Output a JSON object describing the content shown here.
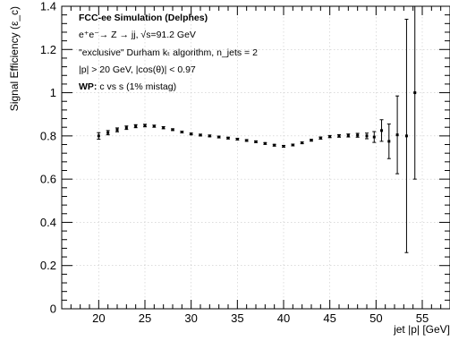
{
  "chart_data": {
    "type": "scatter",
    "xlabel": "jet |p| [GeV]",
    "ylabel": "Signal Efficiency (ε_c)",
    "xlim": [
      16,
      58
    ],
    "ylim": [
      0,
      1.4
    ],
    "xticks": [
      20,
      25,
      30,
      35,
      40,
      45,
      50,
      55
    ],
    "yticks": [
      0,
      0.2,
      0.4,
      0.6,
      0.8,
      1,
      1.2,
      1.4
    ],
    "grid": true,
    "annotations": [
      {
        "text": "FCC-ee Simulation (Delphes)",
        "bold": true
      },
      {
        "text": "e⁺e⁻→ Z → jj, √s=91.2 GeV",
        "bold": false
      },
      {
        "text": "\"exclusive\" Durham kₜ algorithm, n_jets = 2",
        "bold": false
      },
      {
        "text": "|p| > 20 GeV, |cos(θ)| < 0.97",
        "bold": false
      },
      {
        "bold_prefix": "WP: ",
        "text": "c vs s (1% mistag)",
        "bold": true
      }
    ],
    "points": [
      {
        "x": 20.0,
        "y": 0.8,
        "err": 0.015
      },
      {
        "x": 21.0,
        "y": 0.815,
        "err": 0.01
      },
      {
        "x": 22.0,
        "y": 0.828,
        "err": 0.009
      },
      {
        "x": 23.0,
        "y": 0.838,
        "err": 0.008
      },
      {
        "x": 24.0,
        "y": 0.845,
        "err": 0.007
      },
      {
        "x": 25.0,
        "y": 0.848,
        "err": 0.006
      },
      {
        "x": 26.0,
        "y": 0.845,
        "err": 0.005
      },
      {
        "x": 27.0,
        "y": 0.838,
        "err": 0.005
      },
      {
        "x": 28.0,
        "y": 0.829,
        "err": 0.004
      },
      {
        "x": 29.0,
        "y": 0.818,
        "err": 0.004
      },
      {
        "x": 30.0,
        "y": 0.809,
        "err": 0.004
      },
      {
        "x": 31.0,
        "y": 0.804,
        "err": 0.004
      },
      {
        "x": 32.0,
        "y": 0.8,
        "err": 0.004
      },
      {
        "x": 33.0,
        "y": 0.795,
        "err": 0.004
      },
      {
        "x": 34.0,
        "y": 0.79,
        "err": 0.004
      },
      {
        "x": 35.0,
        "y": 0.785,
        "err": 0.004
      },
      {
        "x": 36.0,
        "y": 0.779,
        "err": 0.004
      },
      {
        "x": 37.0,
        "y": 0.773,
        "err": 0.004
      },
      {
        "x": 38.0,
        "y": 0.765,
        "err": 0.004
      },
      {
        "x": 39.0,
        "y": 0.757,
        "err": 0.004
      },
      {
        "x": 40.0,
        "y": 0.752,
        "err": 0.004
      },
      {
        "x": 41.0,
        "y": 0.758,
        "err": 0.004
      },
      {
        "x": 42.0,
        "y": 0.768,
        "err": 0.004
      },
      {
        "x": 43.0,
        "y": 0.78,
        "err": 0.004
      },
      {
        "x": 44.0,
        "y": 0.79,
        "err": 0.005
      },
      {
        "x": 45.0,
        "y": 0.797,
        "err": 0.005
      },
      {
        "x": 46.0,
        "y": 0.8,
        "err": 0.006
      },
      {
        "x": 47.0,
        "y": 0.802,
        "err": 0.007
      },
      {
        "x": 48.0,
        "y": 0.803,
        "err": 0.009
      },
      {
        "x": 49.0,
        "y": 0.8,
        "err": 0.013
      },
      {
        "x": 49.8,
        "y": 0.795,
        "err": 0.025
      },
      {
        "x": 50.6,
        "y": 0.825,
        "err": 0.05
      },
      {
        "x": 51.4,
        "y": 0.775,
        "err": 0.08
      },
      {
        "x": 52.3,
        "y": 0.805,
        "err": 0.18
      },
      {
        "x": 53.3,
        "y": 0.8,
        "err": 0.54
      },
      {
        "x": 54.2,
        "y": 1.0,
        "err": 0.4
      }
    ]
  }
}
